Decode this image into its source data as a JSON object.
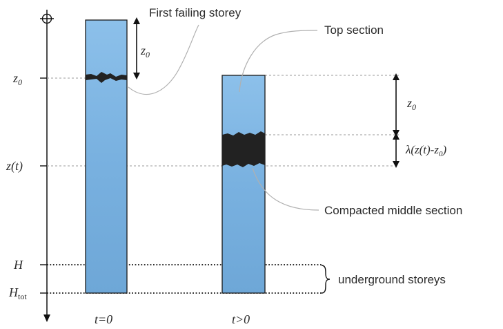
{
  "labels": {
    "first_failing": "First failing storey",
    "top_section": "Top section",
    "compacted_middle": "Compacted middle section",
    "underground": "underground storeys",
    "t0": "t=0",
    "tgt0": "t>0"
  },
  "axis": {
    "z0_main": "z",
    "z0_sub": "0",
    "zt": "z(t)",
    "H": "H",
    "Htot_main": "H",
    "Htot_sub": "tot"
  },
  "dimensions": {
    "z0_left_main": "z",
    "z0_left_sub": "0",
    "z0_right_main": "z",
    "z0_right_sub": "0",
    "lambda_prefix": "λ(z(t)-z",
    "lambda_sub": "0",
    "lambda_suffix": ")"
  },
  "colors": {
    "column_fill": "#7fb6e6",
    "column_stroke": "#1a1a1a",
    "compact_fill": "#222222",
    "guide_line": "#9a9a9a",
    "leader_line": "#b0b0b0"
  }
}
